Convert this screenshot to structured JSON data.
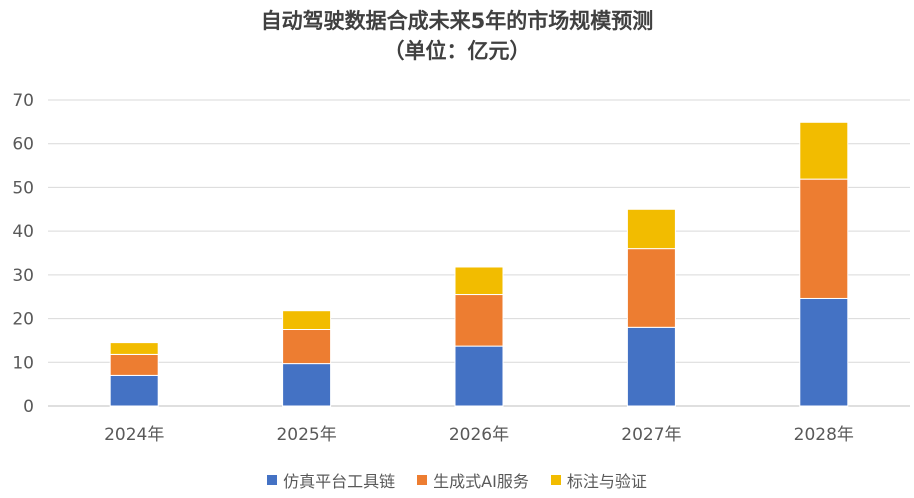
{
  "chart_data": {
    "type": "bar",
    "stacked": true,
    "title": [
      "自动驾驶数据合成未来5年的市场规模预测",
      "（单位：亿元）"
    ],
    "categories": [
      "2024年",
      "2025年",
      "2026年",
      "2027年",
      "2028年"
    ],
    "series": [
      {
        "name": "仿真平台工具链",
        "values": [
          7,
          9.7,
          13.7,
          18,
          24.6
        ],
        "color": "#4472C4"
      },
      {
        "name": "生成式AI服务",
        "values": [
          4.8,
          7.8,
          11.8,
          18,
          27.3
        ],
        "color": "#ED7D31"
      },
      {
        "name": "标注与验证",
        "values": [
          2.7,
          4.3,
          6.3,
          9,
          13
        ],
        "color": "#F2BC00"
      }
    ],
    "ylim": [
      0,
      70
    ],
    "yticks": [
      "0",
      "10",
      "20",
      "30",
      "40",
      "50",
      "60",
      "70"
    ],
    "grid": true,
    "legend_position": "bottom"
  }
}
